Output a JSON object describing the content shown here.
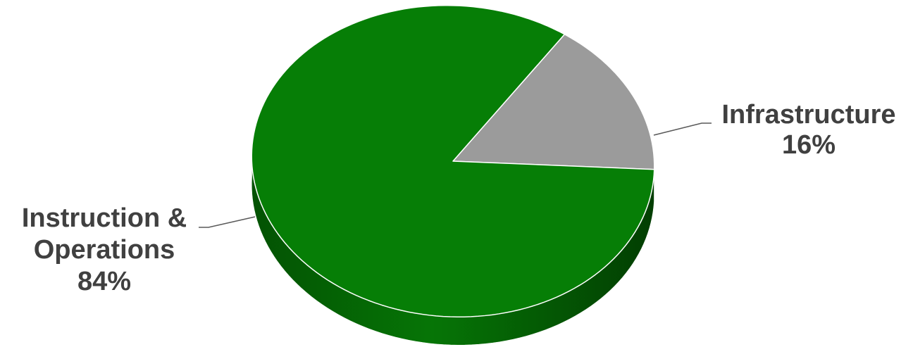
{
  "chart_data": {
    "type": "pie",
    "title": "",
    "slices": [
      {
        "label_lines": [
          "Instruction &",
          "Operations"
        ],
        "percent_label": "84%",
        "value": 84,
        "color": "#067e06",
        "side_color": "#045c04"
      },
      {
        "label_lines": [
          "Infrastructure"
        ],
        "percent_label": "16%",
        "value": 16,
        "color": "#9b9b9b",
        "side_color": "#5e5e5e"
      }
    ],
    "style": "3d-tilted",
    "legend": "none",
    "label_color": "#404040"
  }
}
